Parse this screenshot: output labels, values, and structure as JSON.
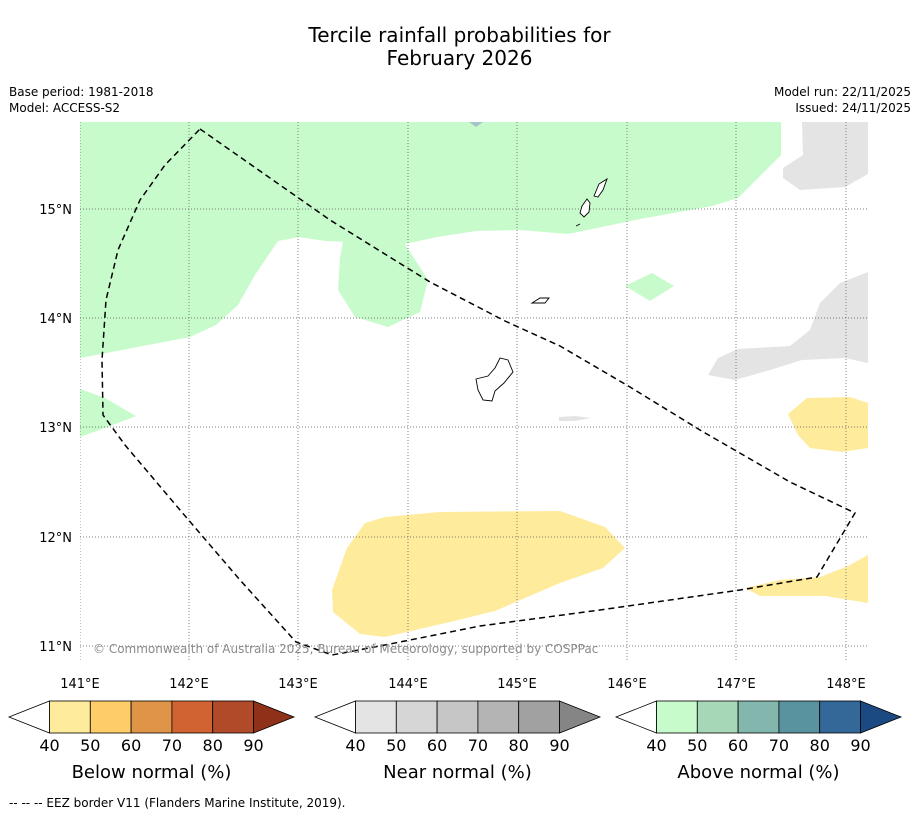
{
  "title": {
    "line1": "Tercile rainfall probabilities for",
    "line2": "February 2026"
  },
  "info": {
    "base_period": "Base period: 1981-2018",
    "model": "Model: ACCESS-S2",
    "model_run": "Model run: 22/11/2025",
    "issued": "Issued: 24/11/2025"
  },
  "map": {
    "lon_labels": [
      "141°E",
      "142°E",
      "143°E",
      "144°E",
      "145°E",
      "146°E",
      "147°E",
      "148°E"
    ],
    "lat_labels": [
      "15°N",
      "14°N",
      "13°N",
      "12°N",
      "11°N"
    ],
    "copyright": "© Commonwealth of Australia 2025, Bureau of Meteorology, supported by COSPPac",
    "colors": {
      "above_40_50": "#c8fbcb",
      "below_40_50": "#ffeb9c",
      "near_40_50": "#e4e4e4",
      "coast": "#000000",
      "eez": "#000000",
      "grid": "#555555"
    }
  },
  "colorbars": [
    {
      "label": "Below normal (%)",
      "ticks": [
        "40",
        "50",
        "60",
        "70",
        "80",
        "90"
      ],
      "colors": [
        "#ffffff",
        "#ffeb9c",
        "#fecd68",
        "#e09447",
        "#d06331",
        "#b04a28",
        "#8f3118"
      ]
    },
    {
      "label": "Near normal (%)",
      "ticks": [
        "40",
        "50",
        "60",
        "70",
        "80",
        "90"
      ],
      "colors": [
        "#ffffff",
        "#e4e4e4",
        "#d6d6d6",
        "#c6c6c6",
        "#b4b4b4",
        "#a1a1a1",
        "#858585"
      ]
    },
    {
      "label": "Above normal (%)",
      "ticks": [
        "40",
        "50",
        "60",
        "70",
        "80",
        "90"
      ],
      "colors": [
        "#ffffff",
        "#c8fbcb",
        "#a6d7b7",
        "#83b7ad",
        "#5a93a0",
        "#336899",
        "#1b4a82"
      ]
    }
  ],
  "footnote": "--  --  -- EEZ border V11 (Flanders Marine Institute, 2019)."
}
